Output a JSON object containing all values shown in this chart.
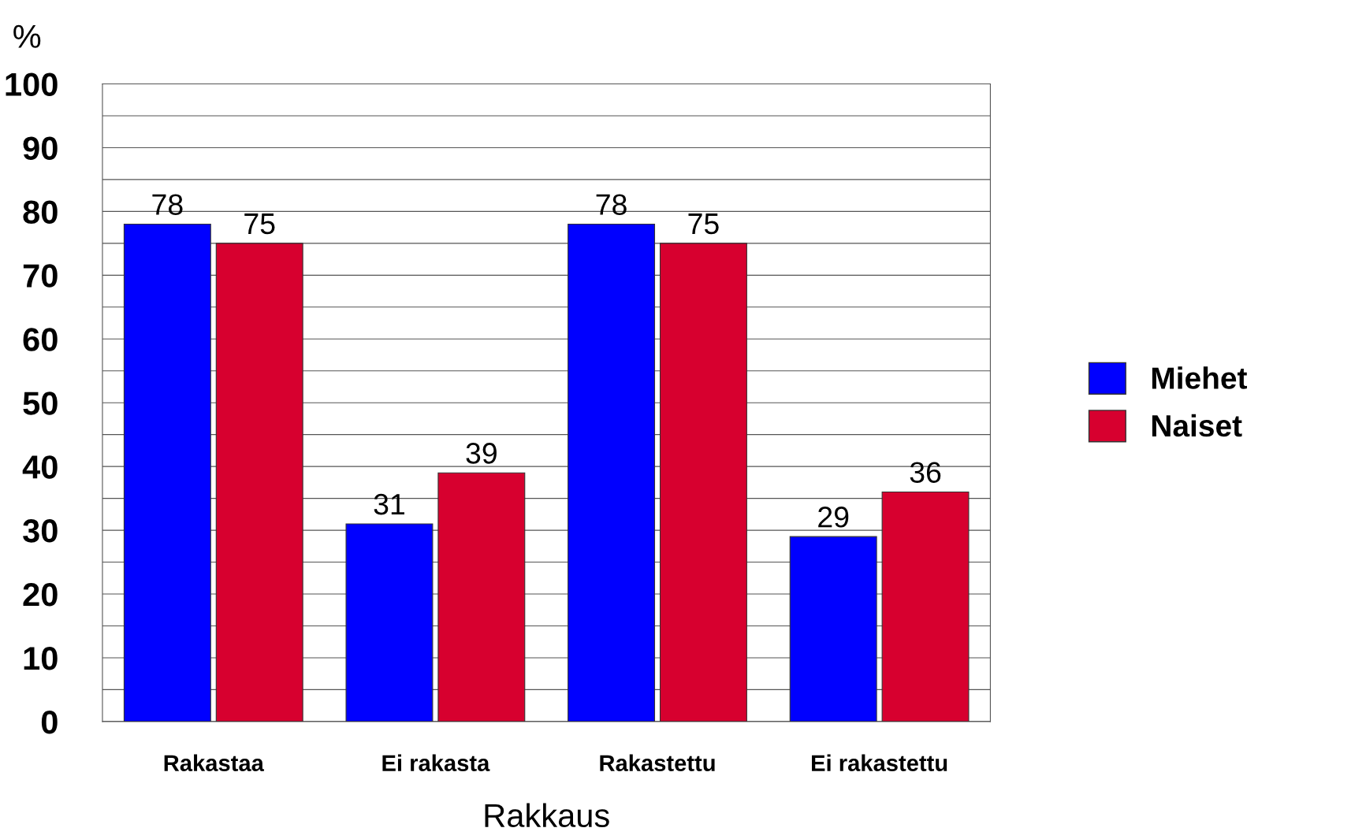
{
  "chart_data": {
    "type": "bar",
    "xlabel": "Rakkaus",
    "ylabel": "%",
    "categories": [
      "Rakastaa",
      "Ei rakasta",
      "Rakastettu",
      "Ei rakastettu"
    ],
    "series": [
      {
        "name": "Miehet",
        "color": "#0000ff",
        "values": [
          78,
          31,
          78,
          29
        ]
      },
      {
        "name": "Naiset",
        "color": "#d7002f",
        "values": [
          75,
          39,
          75,
          36
        ]
      }
    ],
    "ylim": [
      0,
      100
    ],
    "yticks": [
      0,
      {
        "value": 5,
        "label": null
      },
      10,
      {
        "value": 15,
        "label": null
      },
      20,
      {
        "value": 25,
        "label": null
      },
      30,
      {
        "value": 35,
        "label": null
      },
      40,
      {
        "value": 45,
        "label": null
      },
      50,
      {
        "value": 55,
        "label": null
      },
      60,
      {
        "value": 65,
        "label": null
      },
      70,
      {
        "value": 75,
        "label": null
      },
      80,
      {
        "value": 85,
        "label": null
      },
      90,
      {
        "value": 95,
        "label": null
      },
      100
    ],
    "grid": "y",
    "legend": "right",
    "data_labels": true
  }
}
